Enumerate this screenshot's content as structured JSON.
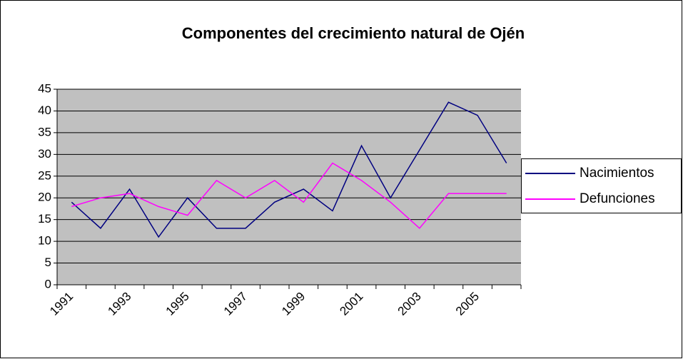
{
  "chart_data": {
    "type": "line",
    "title": "Componentes del crecimiento natural de Ojén",
    "categories": [
      "1991",
      null,
      "1993",
      null,
      "1995",
      null,
      "1997",
      null,
      "1999",
      null,
      "2001",
      null,
      "2003",
      null,
      "2005",
      null
    ],
    "series": [
      {
        "name": "Nacimientos",
        "color": "#000080",
        "values": [
          19,
          13,
          22,
          11,
          20,
          13,
          13,
          19,
          22,
          17,
          32,
          20,
          31,
          42,
          39,
          28
        ]
      },
      {
        "name": "Defunciones",
        "color": "#ff00ff",
        "values": [
          18,
          20,
          21,
          18,
          16,
          24,
          20,
          24,
          19,
          28,
          24,
          19,
          13,
          21,
          21,
          21
        ]
      }
    ],
    "ylim": [
      0,
      45
    ],
    "yticks": [
      0,
      5,
      10,
      15,
      20,
      25,
      30,
      35,
      40,
      45
    ],
    "grid": true,
    "legend": "right",
    "plot_background": "#c0c0c0"
  }
}
